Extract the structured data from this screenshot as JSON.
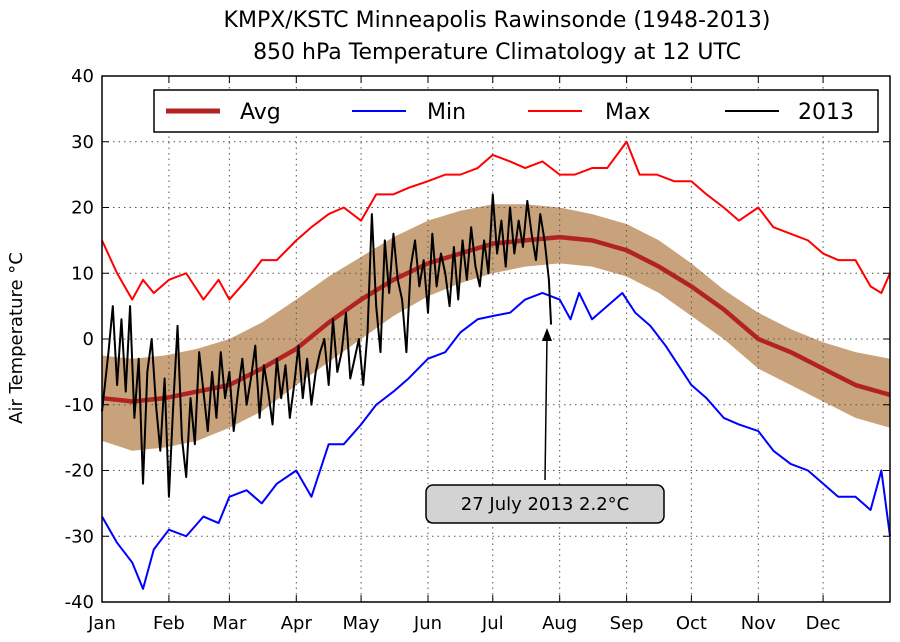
{
  "chart_data": {
    "type": "line",
    "title": "KMPX/KSTC Minneapolis Rawinsonde (1948-2013)",
    "subtitle": "850 hPa Temperature Climatology at 12 UTC",
    "xlabel": "",
    "ylabel": "Air Temperature °C",
    "xlim": [
      1,
      366
    ],
    "ylim": [
      -40,
      40
    ],
    "yticks": [
      -40,
      -30,
      -20,
      -10,
      0,
      10,
      20,
      30,
      40
    ],
    "xticks": [
      {
        "label": "Jan",
        "day": 1
      },
      {
        "label": "Feb",
        "day": 32
      },
      {
        "label": "Mar",
        "day": 60
      },
      {
        "label": "Apr",
        "day": 91
      },
      {
        "label": "May",
        "day": 121
      },
      {
        "label": "Jun",
        "day": 152
      },
      {
        "label": "Jul",
        "day": 182
      },
      {
        "label": "Aug",
        "day": 213
      },
      {
        "label": "Sep",
        "day": 244
      },
      {
        "label": "Oct",
        "day": 274
      },
      {
        "label": "Nov",
        "day": 305
      },
      {
        "label": "Dec",
        "day": 335
      }
    ],
    "grid": true,
    "legend": {
      "placement": "top",
      "entries": [
        "Avg",
        "Min",
        "Max",
        "2013"
      ]
    },
    "band": {
      "color": "#c8a27a",
      "lower": [
        [
          1,
          -15.5
        ],
        [
          15,
          -17
        ],
        [
          30,
          -16.5
        ],
        [
          45,
          -15.5
        ],
        [
          60,
          -13.5
        ],
        [
          75,
          -11
        ],
        [
          91,
          -7
        ],
        [
          106,
          -3.5
        ],
        [
          121,
          0
        ],
        [
          136,
          3.5
        ],
        [
          152,
          6.5
        ],
        [
          167,
          8.5
        ],
        [
          182,
          10
        ],
        [
          197,
          11
        ],
        [
          213,
          11.5
        ],
        [
          228,
          11
        ],
        [
          244,
          9.5
        ],
        [
          259,
          7
        ],
        [
          274,
          3.5
        ],
        [
          289,
          0
        ],
        [
          305,
          -4.5
        ],
        [
          320,
          -7
        ],
        [
          335,
          -9.5
        ],
        [
          350,
          -12
        ],
        [
          366,
          -13.5
        ]
      ],
      "upper": [
        [
          1,
          -2.5
        ],
        [
          15,
          -3
        ],
        [
          30,
          -2.5
        ],
        [
          45,
          -1.5
        ],
        [
          60,
          0
        ],
        [
          75,
          2.5
        ],
        [
          91,
          6
        ],
        [
          106,
          9.5
        ],
        [
          121,
          12.5
        ],
        [
          136,
          15.5
        ],
        [
          152,
          18
        ],
        [
          167,
          19.5
        ],
        [
          182,
          20.5
        ],
        [
          197,
          20.5
        ],
        [
          213,
          20
        ],
        [
          228,
          19
        ],
        [
          244,
          17.5
        ],
        [
          259,
          15
        ],
        [
          274,
          11.5
        ],
        [
          289,
          7.5
        ],
        [
          305,
          4
        ],
        [
          320,
          1.5
        ],
        [
          335,
          -0.5
        ],
        [
          350,
          -2
        ],
        [
          366,
          -3
        ]
      ]
    },
    "series": [
      {
        "name": "Avg",
        "color": "#b22222",
        "points": [
          [
            1,
            -9
          ],
          [
            15,
            -9.5
          ],
          [
            30,
            -9
          ],
          [
            45,
            -8
          ],
          [
            60,
            -7
          ],
          [
            75,
            -4.5
          ],
          [
            91,
            -1.5
          ],
          [
            106,
            2.5
          ],
          [
            121,
            6
          ],
          [
            136,
            9
          ],
          [
            152,
            11.5
          ],
          [
            167,
            13
          ],
          [
            182,
            14.5
          ],
          [
            197,
            15
          ],
          [
            213,
            15.5
          ],
          [
            228,
            15
          ],
          [
            244,
            13.5
          ],
          [
            259,
            11
          ],
          [
            274,
            8
          ],
          [
            289,
            4.5
          ],
          [
            305,
            0
          ],
          [
            320,
            -2
          ],
          [
            335,
            -4.5
          ],
          [
            350,
            -7
          ],
          [
            366,
            -8.5
          ]
        ]
      },
      {
        "name": "Min",
        "color": "#0000ff",
        "points": [
          [
            1,
            -27
          ],
          [
            8,
            -31
          ],
          [
            15,
            -34
          ],
          [
            20,
            -38
          ],
          [
            25,
            -32
          ],
          [
            32,
            -29
          ],
          [
            40,
            -30
          ],
          [
            48,
            -27
          ],
          [
            55,
            -28
          ],
          [
            60,
            -24
          ],
          [
            68,
            -23
          ],
          [
            75,
            -25
          ],
          [
            82,
            -22
          ],
          [
            91,
            -20
          ],
          [
            98,
            -24
          ],
          [
            106,
            -16
          ],
          [
            113,
            -16
          ],
          [
            121,
            -13
          ],
          [
            128,
            -10
          ],
          [
            136,
            -8
          ],
          [
            143,
            -6
          ],
          [
            152,
            -3
          ],
          [
            160,
            -2
          ],
          [
            167,
            1
          ],
          [
            175,
            3
          ],
          [
            182,
            3.5
          ],
          [
            190,
            4
          ],
          [
            197,
            6
          ],
          [
            205,
            7
          ],
          [
            213,
            6
          ],
          [
            218,
            3
          ],
          [
            222,
            7
          ],
          [
            228,
            3
          ],
          [
            235,
            5
          ],
          [
            242,
            7
          ],
          [
            248,
            4
          ],
          [
            255,
            2
          ],
          [
            262,
            -1
          ],
          [
            268,
            -4
          ],
          [
            274,
            -7
          ],
          [
            281,
            -9
          ],
          [
            289,
            -12
          ],
          [
            296,
            -13
          ],
          [
            305,
            -14
          ],
          [
            312,
            -17
          ],
          [
            320,
            -19
          ],
          [
            328,
            -20
          ],
          [
            335,
            -22
          ],
          [
            342,
            -24
          ],
          [
            350,
            -24
          ],
          [
            357,
            -26
          ],
          [
            362,
            -20
          ],
          [
            366,
            -30
          ]
        ]
      },
      {
        "name": "Max",
        "color": "#ff0000",
        "points": [
          [
            1,
            15
          ],
          [
            8,
            10
          ],
          [
            15,
            6
          ],
          [
            20,
            9
          ],
          [
            25,
            7
          ],
          [
            32,
            9
          ],
          [
            40,
            10
          ],
          [
            48,
            6
          ],
          [
            55,
            9
          ],
          [
            60,
            6
          ],
          [
            68,
            9
          ],
          [
            75,
            12
          ],
          [
            82,
            12
          ],
          [
            91,
            15
          ],
          [
            98,
            17
          ],
          [
            106,
            19
          ],
          [
            113,
            20
          ],
          [
            121,
            18
          ],
          [
            128,
            22
          ],
          [
            136,
            22
          ],
          [
            143,
            23
          ],
          [
            152,
            24
          ],
          [
            160,
            25
          ],
          [
            167,
            25
          ],
          [
            175,
            26
          ],
          [
            182,
            28
          ],
          [
            190,
            27
          ],
          [
            197,
            26
          ],
          [
            205,
            27
          ],
          [
            213,
            25
          ],
          [
            220,
            25
          ],
          [
            228,
            26
          ],
          [
            235,
            26
          ],
          [
            244,
            30
          ],
          [
            250,
            25
          ],
          [
            258,
            25
          ],
          [
            266,
            24
          ],
          [
            274,
            24
          ],
          [
            281,
            22
          ],
          [
            289,
            20
          ],
          [
            296,
            18
          ],
          [
            305,
            20
          ],
          [
            312,
            17
          ],
          [
            320,
            16
          ],
          [
            328,
            15
          ],
          [
            335,
            13
          ],
          [
            342,
            12
          ],
          [
            350,
            12
          ],
          [
            357,
            8
          ],
          [
            362,
            7
          ],
          [
            366,
            10
          ]
        ]
      },
      {
        "name": "2013",
        "color": "#000000",
        "points": [
          [
            1,
            -11
          ],
          [
            4,
            -2
          ],
          [
            6,
            5
          ],
          [
            8,
            -7
          ],
          [
            10,
            3
          ],
          [
            12,
            -8
          ],
          [
            14,
            5
          ],
          [
            16,
            -12
          ],
          [
            18,
            -3
          ],
          [
            20,
            -22
          ],
          [
            22,
            -5
          ],
          [
            24,
            0
          ],
          [
            26,
            -10
          ],
          [
            28,
            -17
          ],
          [
            30,
            -6
          ],
          [
            32,
            -24
          ],
          [
            34,
            -10
          ],
          [
            36,
            2
          ],
          [
            38,
            -15
          ],
          [
            40,
            -21
          ],
          [
            42,
            -9
          ],
          [
            44,
            -16
          ],
          [
            46,
            -2
          ],
          [
            48,
            -8
          ],
          [
            50,
            -14
          ],
          [
            52,
            -5
          ],
          [
            54,
            -12
          ],
          [
            56,
            -2
          ],
          [
            58,
            -9
          ],
          [
            60,
            -5
          ],
          [
            62,
            -14
          ],
          [
            64,
            -8
          ],
          [
            66,
            -3
          ],
          [
            68,
            -10
          ],
          [
            70,
            -6
          ],
          [
            72,
            -1
          ],
          [
            74,
            -12
          ],
          [
            76,
            -4
          ],
          [
            78,
            -8
          ],
          [
            80,
            -13
          ],
          [
            82,
            -3
          ],
          [
            84,
            -9
          ],
          [
            86,
            -4
          ],
          [
            88,
            -12
          ],
          [
            90,
            -7
          ],
          [
            92,
            -1
          ],
          [
            94,
            -9
          ],
          [
            96,
            -3
          ],
          [
            98,
            -10
          ],
          [
            100,
            -5
          ],
          [
            102,
            -2
          ],
          [
            104,
            0
          ],
          [
            106,
            -7
          ],
          [
            108,
            3
          ],
          [
            110,
            -5
          ],
          [
            112,
            -2
          ],
          [
            114,
            4
          ],
          [
            116,
            -6
          ],
          [
            118,
            -3
          ],
          [
            120,
            0
          ],
          [
            122,
            -7
          ],
          [
            124,
            1
          ],
          [
            126,
            19
          ],
          [
            128,
            5
          ],
          [
            130,
            -2
          ],
          [
            132,
            15
          ],
          [
            134,
            7
          ],
          [
            136,
            16
          ],
          [
            138,
            9
          ],
          [
            140,
            6
          ],
          [
            142,
            -2
          ],
          [
            144,
            11
          ],
          [
            146,
            15
          ],
          [
            148,
            8
          ],
          [
            150,
            12
          ],
          [
            152,
            4
          ],
          [
            154,
            16
          ],
          [
            156,
            8
          ],
          [
            158,
            13
          ],
          [
            160,
            10
          ],
          [
            162,
            5
          ],
          [
            164,
            14
          ],
          [
            166,
            6
          ],
          [
            168,
            15
          ],
          [
            170,
            9
          ],
          [
            172,
            17
          ],
          [
            174,
            11
          ],
          [
            176,
            8
          ],
          [
            178,
            15
          ],
          [
            180,
            10
          ],
          [
            182,
            22
          ],
          [
            184,
            13
          ],
          [
            186,
            18
          ],
          [
            188,
            11
          ],
          [
            190,
            20
          ],
          [
            192,
            13
          ],
          [
            194,
            18
          ],
          [
            196,
            14
          ],
          [
            198,
            21
          ],
          [
            200,
            16
          ],
          [
            202,
            12
          ],
          [
            204,
            19
          ],
          [
            206,
            15
          ],
          [
            208,
            9
          ],
          [
            209,
            2.2
          ]
        ]
      }
    ],
    "annotation": {
      "text": "27 July 2013 2.2°C",
      "x": 209,
      "y": 2.2
    }
  }
}
